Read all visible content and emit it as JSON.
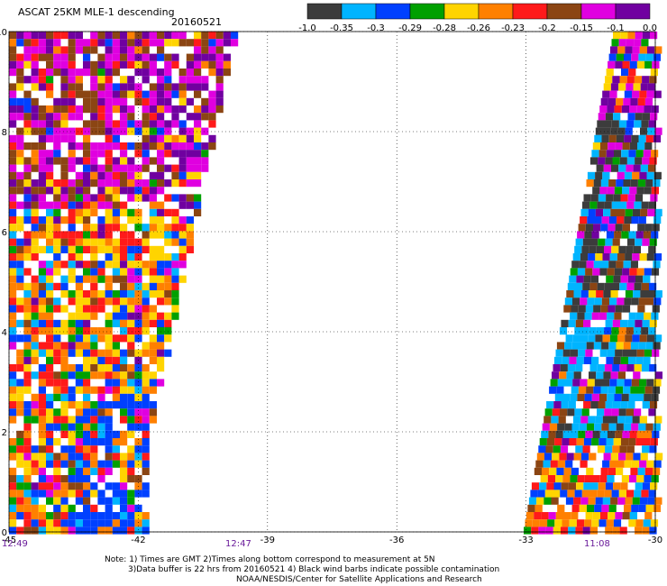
{
  "header": {
    "title": "ASCAT 25KM MLE-1 descending",
    "date": "20160521"
  },
  "colorbar": {
    "colors": [
      "#3c3c3c",
      "#00b4ff",
      "#0040ff",
      "#00a000",
      "#ffd400",
      "#ff8000",
      "#ff1a1a",
      "#8b4513",
      "#e000e0",
      "#7000a0"
    ],
    "labels": [
      "-1.0",
      "-0.35",
      "-0.3",
      "-0.29",
      "-0.28",
      "-0.26",
      "-0.23",
      "-0.2",
      "-0.15",
      "-0.1",
      "0.0"
    ]
  },
  "axes": {
    "x_ticks": [
      "-45",
      "-42",
      "-39",
      "-36",
      "-33",
      "-30"
    ],
    "y_ticks": [
      "0",
      "2",
      "4",
      "6",
      "8",
      "10"
    ]
  },
  "times": [
    "12:49",
    "12:47",
    "11:08"
  ],
  "notes": [
    "Note: 1) Times are GMT 2)Times along bottom correspond to measurement at 5N",
    "3)Data buffer is 22 hrs from 20160521 4) Black wind barbs indicate possible contamination",
    "NOAA/NESDIS/Center for Satellite Applications and Research"
  ],
  "chart_data": {
    "type": "heatmap",
    "title": "ASCAT 25KM MLE-1 descending",
    "date": "20160521",
    "xlim": [
      -45,
      -30
    ],
    "ylim": [
      0,
      10
    ],
    "x_ticks": [
      -45,
      -42,
      -39,
      -36,
      -33,
      -30
    ],
    "y_ticks": [
      0,
      2,
      4,
      6,
      8,
      10
    ],
    "grid": true,
    "colorbar_breaks": [
      -1.0,
      -0.35,
      -0.3,
      -0.29,
      -0.28,
      -0.26,
      -0.23,
      -0.2,
      -0.15,
      -0.1,
      0.0
    ],
    "swaths": [
      {
        "name": "west",
        "time": "12:49"
      },
      {
        "name": "east",
        "time": "11:08"
      }
    ]
  }
}
